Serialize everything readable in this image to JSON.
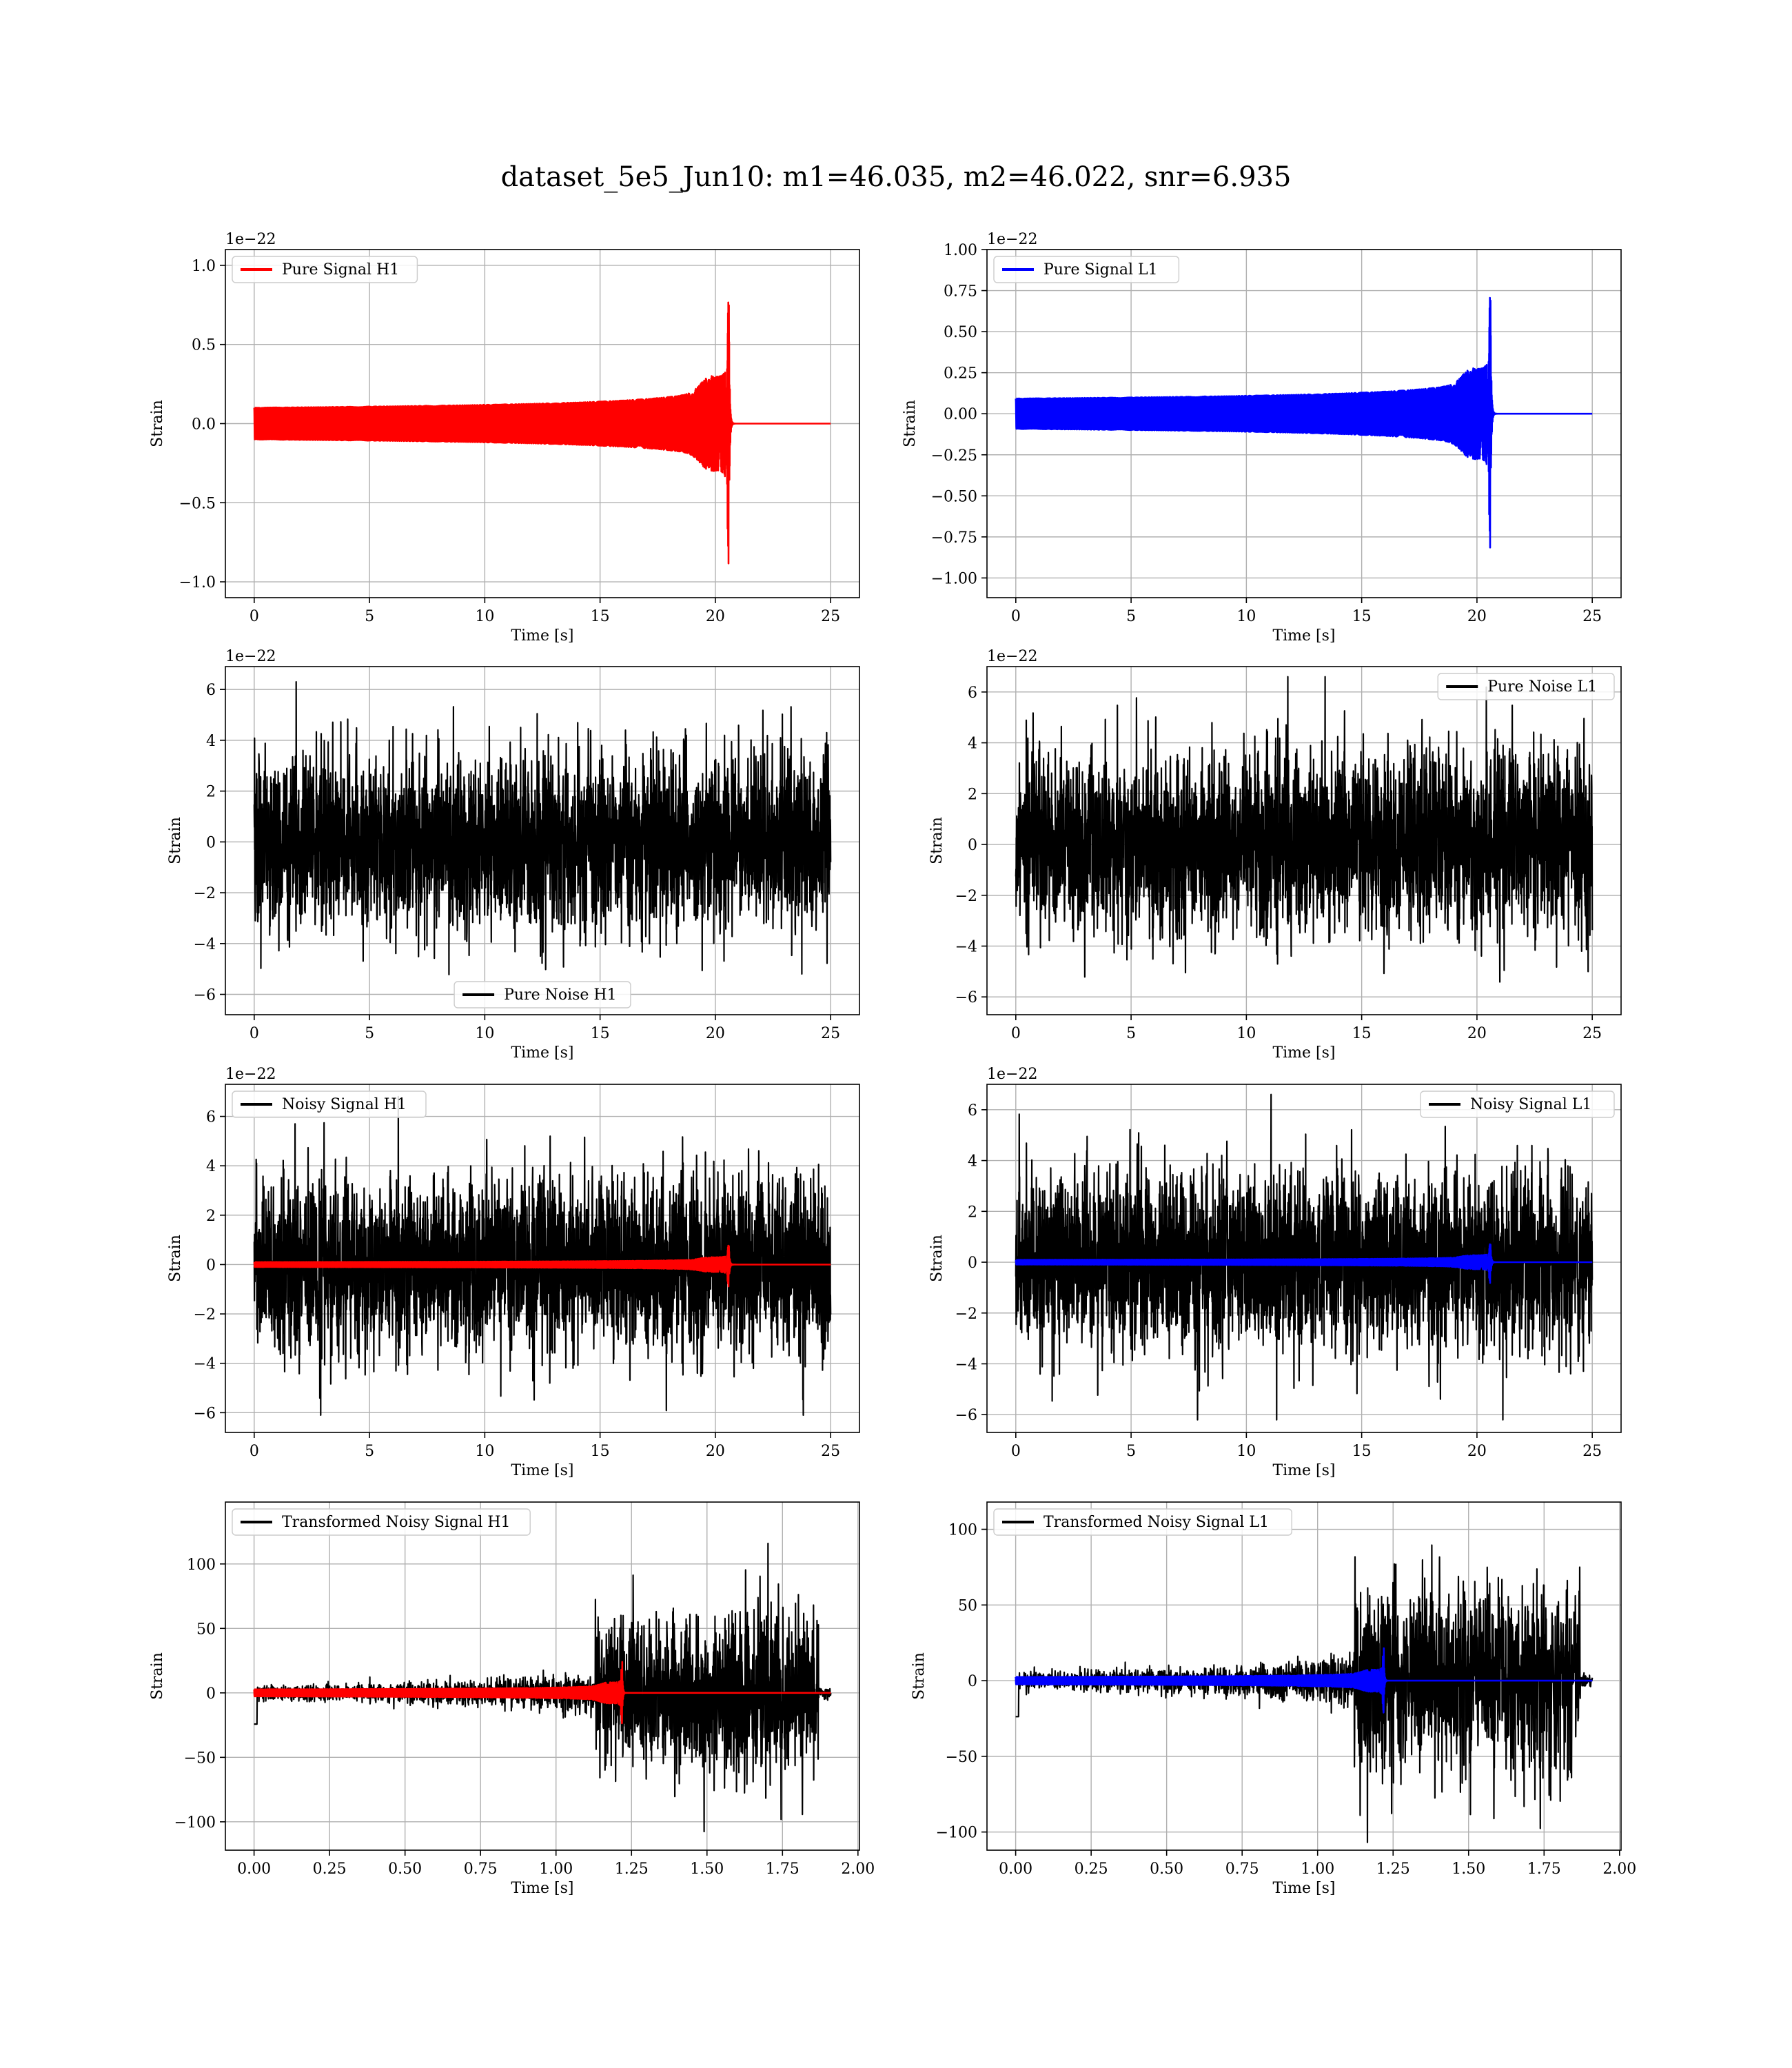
{
  "figure_title": "dataset_5e5_Jun10: m1=46.035, m2=46.022, snr=6.935",
  "colors": {
    "h1_signal": "#ff0000",
    "l1_signal": "#0000ff",
    "noise": "#000000",
    "grid": "#b0b0b0"
  },
  "chart_data": [
    {
      "id": "pure-signal-h1",
      "type": "line",
      "xlabel": "Time [s]",
      "ylabel": "Strain",
      "offset_text": "1e−22",
      "xlim": [
        -1.25,
        26.25
      ],
      "ylim": [
        -1.1,
        1.1
      ],
      "xticks": [
        0,
        5,
        10,
        15,
        20,
        25
      ],
      "xtick_labels": [
        "0",
        "5",
        "10",
        "15",
        "20",
        "25"
      ],
      "yticks": [
        -1,
        -0.5,
        0,
        0.5,
        1
      ],
      "ytick_labels": [
        "−1.0",
        "−0.5",
        "0.0",
        "0.5",
        "1.0"
      ],
      "legend_position": "upper-left",
      "series": [
        {
          "name": "Pure Signal H1",
          "kind": "chirp",
          "color": "#ff0000",
          "x_range": [
            0,
            25
          ],
          "merger_time": 20.6,
          "peak_amplitude": 1.03
        }
      ]
    },
    {
      "id": "pure-signal-l1",
      "type": "line",
      "xlabel": "Time [s]",
      "ylabel": "Strain",
      "offset_text": "1e−22",
      "xlim": [
        -1.25,
        26.25
      ],
      "ylim": [
        -1.12,
        1.0
      ],
      "xticks": [
        0,
        5,
        10,
        15,
        20,
        25
      ],
      "xtick_labels": [
        "0",
        "5",
        "10",
        "15",
        "20",
        "25"
      ],
      "yticks": [
        -1,
        -0.75,
        -0.5,
        -0.25,
        0,
        0.25,
        0.5,
        0.75,
        1
      ],
      "ytick_labels": [
        "−1.00",
        "−0.75",
        "−0.50",
        "−0.25",
        "0.00",
        "0.25",
        "0.50",
        "0.75",
        "1.00"
      ],
      "legend_position": "upper-left",
      "series": [
        {
          "name": "Pure Signal L1",
          "kind": "chirp",
          "color": "#0000ff",
          "x_range": [
            0,
            25
          ],
          "merger_time": 20.6,
          "peak_amplitude": 0.95
        }
      ]
    },
    {
      "id": "pure-noise-h1",
      "type": "line",
      "xlabel": "Time [s]",
      "ylabel": "Strain",
      "offset_text": "1e−22",
      "xlim": [
        -1.25,
        26.25
      ],
      "ylim": [
        -6.8,
        6.9
      ],
      "xticks": [
        0,
        5,
        10,
        15,
        20,
        25
      ],
      "xtick_labels": [
        "0",
        "5",
        "10",
        "15",
        "20",
        "25"
      ],
      "yticks": [
        -6,
        -4,
        -2,
        0,
        2,
        4,
        6
      ],
      "ytick_labels": [
        "−6",
        "−4",
        "−2",
        "0",
        "2",
        "4",
        "6"
      ],
      "legend_position": "lower-center",
      "series": [
        {
          "name": "Pure Noise H1",
          "kind": "noise",
          "color": "#000000",
          "x_range": [
            0,
            25
          ],
          "amplitude_min": -6.1,
          "amplitude_max": 6.3
        }
      ]
    },
    {
      "id": "pure-noise-l1",
      "type": "line",
      "xlabel": "Time [s]",
      "ylabel": "Strain",
      "offset_text": "1e−22",
      "xlim": [
        -1.25,
        26.25
      ],
      "ylim": [
        -6.7,
        7.0
      ],
      "xticks": [
        0,
        5,
        10,
        15,
        20,
        25
      ],
      "xtick_labels": [
        "0",
        "5",
        "10",
        "15",
        "20",
        "25"
      ],
      "yticks": [
        -6,
        -4,
        -2,
        0,
        2,
        4,
        6
      ],
      "ytick_labels": [
        "−6",
        "−4",
        "−2",
        "0",
        "2",
        "4",
        "6"
      ],
      "legend_position": "upper-right",
      "series": [
        {
          "name": "Pure Noise L1",
          "kind": "noise",
          "color": "#000000",
          "x_range": [
            0,
            25
          ],
          "amplitude_min": -6.2,
          "amplitude_max": 6.6
        }
      ]
    },
    {
      "id": "noisy-signal-h1",
      "type": "line",
      "xlabel": "Time [s]",
      "ylabel": "Strain",
      "offset_text": "1e−22",
      "xlim": [
        -1.25,
        26.25
      ],
      "ylim": [
        -6.8,
        7.3
      ],
      "xticks": [
        0,
        5,
        10,
        15,
        20,
        25
      ],
      "xtick_labels": [
        "0",
        "5",
        "10",
        "15",
        "20",
        "25"
      ],
      "yticks": [
        -6,
        -4,
        -2,
        0,
        2,
        4,
        6
      ],
      "ytick_labels": [
        "−6",
        "−4",
        "−2",
        "0",
        "2",
        "4",
        "6"
      ],
      "legend_position": "upper-left",
      "series": [
        {
          "name": "Noisy Signal H1",
          "kind": "noise",
          "color": "#000000",
          "x_range": [
            0,
            25
          ],
          "amplitude_min": -6.1,
          "amplitude_max": 6.8
        },
        {
          "kind": "chirp",
          "color": "#ff0000",
          "x_range": [
            0,
            25
          ],
          "merger_time": 20.6,
          "peak_amplitude": 1.03
        }
      ]
    },
    {
      "id": "noisy-signal-l1",
      "type": "line",
      "xlabel": "Time [s]",
      "ylabel": "Strain",
      "offset_text": "1e−22",
      "xlim": [
        -1.25,
        26.25
      ],
      "ylim": [
        -6.7,
        7.0
      ],
      "xticks": [
        0,
        5,
        10,
        15,
        20,
        25
      ],
      "xtick_labels": [
        "0",
        "5",
        "10",
        "15",
        "20",
        "25"
      ],
      "yticks": [
        -6,
        -4,
        -2,
        0,
        2,
        4,
        6
      ],
      "ytick_labels": [
        "−6",
        "−4",
        "−2",
        "0",
        "2",
        "4",
        "6"
      ],
      "legend_position": "upper-right",
      "series": [
        {
          "name": "Noisy Signal L1",
          "kind": "noise",
          "color": "#000000",
          "x_range": [
            0,
            25
          ],
          "amplitude_min": -6.2,
          "amplitude_max": 6.6
        },
        {
          "kind": "chirp",
          "color": "#0000ff",
          "x_range": [
            0,
            25
          ],
          "merger_time": 20.6,
          "peak_amplitude": 0.95
        }
      ]
    },
    {
      "id": "transformed-noisy-signal-h1",
      "type": "line",
      "xlabel": "Time [s]",
      "ylabel": "Strain",
      "offset_text": "",
      "xlim": [
        -0.095,
        2.005
      ],
      "ylim": [
        -122,
        148
      ],
      "xticks": [
        0,
        0.25,
        0.5,
        0.75,
        1.0,
        1.25,
        1.5,
        1.75,
        2.0
      ],
      "xtick_labels": [
        "0.00",
        "0.25",
        "0.50",
        "0.75",
        "1.00",
        "1.25",
        "1.50",
        "1.75",
        "2.00"
      ],
      "yticks": [
        -100,
        -50,
        0,
        50,
        100
      ],
      "ytick_labels": [
        "−100",
        "−50",
        "0",
        "50",
        "100"
      ],
      "legend_position": "upper-left",
      "series": [
        {
          "name": "Transformed Noisy Signal H1",
          "kind": "whitened-noise",
          "color": "#000000",
          "x_range": [
            0,
            1.91
          ],
          "noise_rise_time": 1.13,
          "noise_end_time": 1.87,
          "amplitude_min": -110,
          "amplitude_max": 136
        },
        {
          "kind": "chirp",
          "color": "#ff0000",
          "x_range": [
            0,
            1.91
          ],
          "merger_time": 1.22,
          "peak_amplitude": 28
        }
      ]
    },
    {
      "id": "transformed-noisy-signal-l1",
      "type": "line",
      "xlabel": "Time [s]",
      "ylabel": "Strain",
      "offset_text": "",
      "xlim": [
        -0.095,
        2.005
      ],
      "ylim": [
        -112,
        118
      ],
      "xticks": [
        0,
        0.25,
        0.5,
        0.75,
        1.0,
        1.25,
        1.5,
        1.75,
        2.0
      ],
      "xtick_labels": [
        "0.00",
        "0.25",
        "0.50",
        "0.75",
        "1.00",
        "1.25",
        "1.50",
        "1.75",
        "2.00"
      ],
      "yticks": [
        -100,
        -50,
        0,
        50,
        100
      ],
      "ytick_labels": [
        "−100",
        "−50",
        "0",
        "50",
        "100"
      ],
      "legend_position": "upper-left",
      "series": [
        {
          "name": "Transformed Noisy Signal L1",
          "kind": "whitened-noise",
          "color": "#000000",
          "x_range": [
            0,
            1.91
          ],
          "noise_rise_time": 1.12,
          "noise_end_time": 1.87,
          "amplitude_min": -108,
          "amplitude_max": 105
        },
        {
          "kind": "chirp",
          "color": "#0000ff",
          "x_range": [
            0,
            1.91
          ],
          "merger_time": 1.22,
          "peak_amplitude": 25
        }
      ]
    }
  ]
}
